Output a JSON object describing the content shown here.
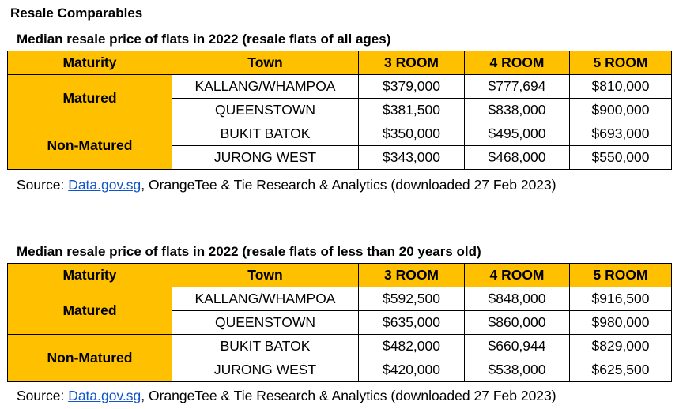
{
  "heading": "Resale Comparables",
  "columns": [
    "Maturity",
    "Town",
    "3 ROOM",
    "4 ROOM",
    "5 ROOM"
  ],
  "tables": [
    {
      "title": "Median resale price of flats in 2022 (resale flats of all ages)",
      "groups": [
        {
          "maturity": "Matured",
          "rows": [
            {
              "town": "KALLANG/WHAMPOA",
              "room3": "$379,000",
              "room4": "$777,694",
              "room5": "$810,000"
            },
            {
              "town": "QUEENSTOWN",
              "room3": "$381,500",
              "room4": "$838,000",
              "room5": "$900,000"
            }
          ]
        },
        {
          "maturity": "Non-Matured",
          "rows": [
            {
              "town": "BUKIT BATOK",
              "room3": "$350,000",
              "room4": "$495,000",
              "room5": "$693,000"
            },
            {
              "town": "JURONG WEST",
              "room3": "$343,000",
              "room4": "$468,000",
              "room5": "$550,000"
            }
          ]
        }
      ]
    },
    {
      "title": "Median resale price of flats in 2022 (resale flats of less than 20 years old)",
      "groups": [
        {
          "maturity": "Matured",
          "rows": [
            {
              "town": "KALLANG/WHAMPOA",
              "room3": "$592,500",
              "room4": "$848,000",
              "room5": "$916,500"
            },
            {
              "town": "QUEENSTOWN",
              "room3": "$635,000",
              "room4": "$860,000",
              "room5": "$980,000"
            }
          ]
        },
        {
          "maturity": "Non-Matured",
          "rows": [
            {
              "town": "BUKIT BATOK",
              "room3": "$482,000",
              "room4": "$660,944",
              "room5": "$829,000"
            },
            {
              "town": "JURONG WEST",
              "room3": "$420,000",
              "room4": "$538,000",
              "room5": "$625,500"
            }
          ]
        }
      ]
    }
  ],
  "source": {
    "prefix": "Source: ",
    "link_text": "Data.gov.sg",
    "suffix": ", OrangeTee & Tie Research & Analytics (downloaded 27 Feb 2023)"
  },
  "colors": {
    "header_fill": "#FFC000",
    "link": "#1155CC",
    "border": "#000000"
  }
}
